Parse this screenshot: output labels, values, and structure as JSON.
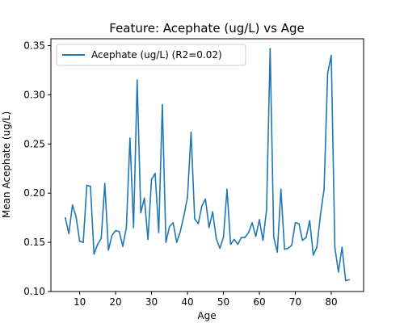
{
  "chart_data": {
    "type": "line",
    "title": "Feature: Acephate (ug/L) vs Age",
    "xlabel": "Age",
    "ylabel": "Mean Acephate (ug/L)",
    "xlim": [
      2,
      89
    ],
    "ylim": [
      0.1,
      0.357
    ],
    "xticks": [
      10,
      20,
      30,
      40,
      50,
      60,
      70,
      80
    ],
    "yticks": [
      0.1,
      0.15,
      0.2,
      0.25,
      0.3,
      0.35
    ],
    "ytick_labels": [
      "0.10",
      "0.15",
      "0.20",
      "0.25",
      "0.30",
      "0.35"
    ],
    "legend_position": "upper-left",
    "grid": false,
    "colors": {
      "line": "#1f77b4"
    },
    "series": [
      {
        "name": "Acephate (ug/L) (R2=0.02)",
        "x": [
          6,
          7,
          8,
          9,
          10,
          11,
          12,
          13,
          14,
          15,
          16,
          17,
          18,
          19,
          20,
          21,
          22,
          23,
          24,
          25,
          26,
          27,
          28,
          29,
          30,
          31,
          32,
          33,
          34,
          35,
          36,
          37,
          38,
          39,
          40,
          41,
          42,
          43,
          44,
          45,
          46,
          47,
          48,
          49,
          50,
          51,
          52,
          53,
          54,
          55,
          56,
          57,
          58,
          59,
          60,
          61,
          62,
          63,
          64,
          65,
          66,
          67,
          68,
          69,
          70,
          71,
          72,
          73,
          74,
          75,
          76,
          77,
          78,
          79,
          80,
          81,
          82,
          83,
          84,
          85
        ],
        "y": [
          0.175,
          0.159,
          0.188,
          0.176,
          0.151,
          0.15,
          0.208,
          0.207,
          0.138,
          0.148,
          0.154,
          0.21,
          0.142,
          0.157,
          0.162,
          0.161,
          0.146,
          0.165,
          0.256,
          0.165,
          0.315,
          0.18,
          0.195,
          0.153,
          0.214,
          0.22,
          0.16,
          0.29,
          0.15,
          0.166,
          0.17,
          0.15,
          0.161,
          0.177,
          0.196,
          0.262,
          0.174,
          0.169,
          0.187,
          0.194,
          0.165,
          0.181,
          0.154,
          0.144,
          0.155,
          0.204,
          0.148,
          0.153,
          0.148,
          0.155,
          0.155,
          0.16,
          0.17,
          0.156,
          0.173,
          0.152,
          0.183,
          0.347,
          0.155,
          0.14,
          0.204,
          0.143,
          0.144,
          0.147,
          0.17,
          0.169,
          0.152,
          0.155,
          0.172,
          0.137,
          0.145,
          0.178,
          0.204,
          0.322,
          0.34,
          0.145,
          0.12,
          0.145,
          0.111,
          0.112
        ]
      }
    ]
  }
}
